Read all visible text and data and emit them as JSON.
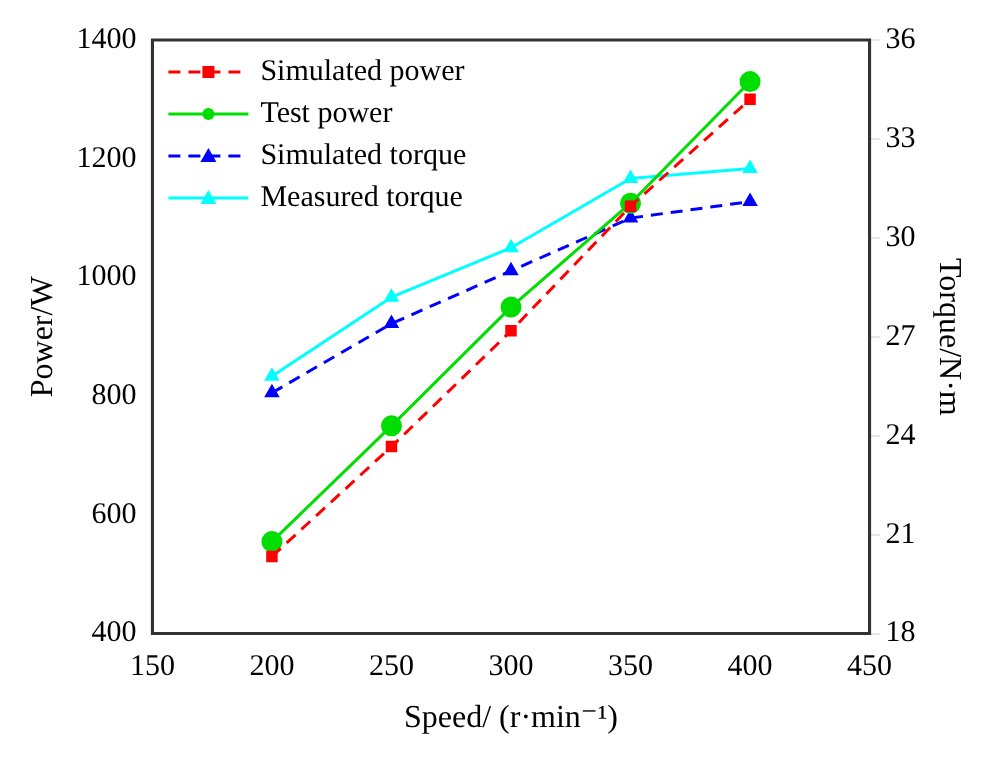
{
  "chart_data": {
    "type": "line",
    "xlabel": "Speed/ (r·min⁻¹)",
    "ylabel": "Power/W",
    "y2label": "Torque/N·m",
    "x": [
      200,
      250,
      300,
      350,
      400
    ],
    "series": [
      {
        "name": "Simulated power",
        "color": "#ff0000",
        "values": [
          530,
          715,
          910,
          1120,
          1300
        ],
        "marker": "square",
        "line_style": "dashed"
      },
      {
        "name": "Test power",
        "color": "#00dd00",
        "values": [
          555,
          750,
          950,
          1125,
          1330
        ],
        "marker": "circle",
        "line_style": "solid"
      },
      {
        "name": "Simulated torque",
        "color": "#0000ff",
        "values": [
          25.3,
          27.4,
          29.0,
          30.6,
          31.1
        ],
        "marker": "triangle",
        "line_style": "dashed",
        "axis": "y2"
      },
      {
        "name": "Measured torque",
        "color": "#00ffff",
        "values": [
          25.8,
          28.2,
          29.7,
          31.8,
          32.1
        ],
        "marker": "triangle",
        "line_style": "solid",
        "axis": "y2"
      }
    ],
    "xlim": [
      150,
      450
    ],
    "xticks": [
      150,
      200,
      250,
      300,
      350,
      400,
      450
    ],
    "ylim": [
      400,
      1400
    ],
    "yticks": [
      400,
      600,
      800,
      1000,
      1200,
      1400
    ],
    "y2lim": [
      18,
      36
    ],
    "y2ticks": [
      18,
      21,
      24,
      27,
      30,
      33,
      36
    ],
    "grid": false,
    "legend": "top left"
  }
}
